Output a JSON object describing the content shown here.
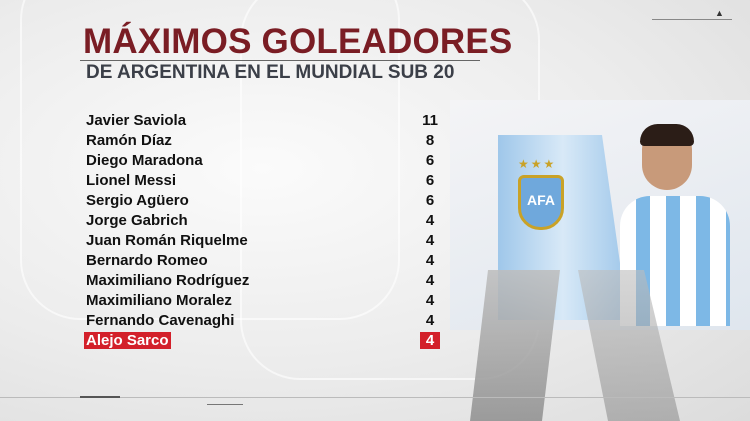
{
  "header": {
    "title": "MÁXIMOS GOLEADORES",
    "subtitle": "DE ARGENTINA EN EL MUNDIAL SUB 20"
  },
  "scorers": [
    {
      "name": "Javier Saviola",
      "goals": "11"
    },
    {
      "name": "Ramón Díaz",
      "goals": "8"
    },
    {
      "name": "Diego Maradona",
      "goals": "6"
    },
    {
      "name": "Lionel Messi",
      "goals": "6"
    },
    {
      "name": "Sergio Agüero",
      "goals": "6"
    },
    {
      "name": "Jorge Gabrich",
      "goals": "4"
    },
    {
      "name": "Juan Román Riquelme",
      "goals": "4"
    },
    {
      "name": "Bernardo Romeo",
      "goals": "4"
    },
    {
      "name": "Maximiliano Rodríguez",
      "goals": "4"
    },
    {
      "name": "Maximiliano Moralez",
      "goals": "4"
    },
    {
      "name": "Fernando Cavenaghi",
      "goals": "4"
    },
    {
      "name": "Alejo Sarco",
      "goals": "4",
      "highlighted": true
    }
  ],
  "crest": {
    "text": "AFA",
    "stars": "★★★"
  },
  "colors": {
    "title": "#7a1d24",
    "highlight": "#d3202a",
    "subtitle": "#3b3f48"
  },
  "icons": {
    "top_right": "triangle-up-icon"
  }
}
